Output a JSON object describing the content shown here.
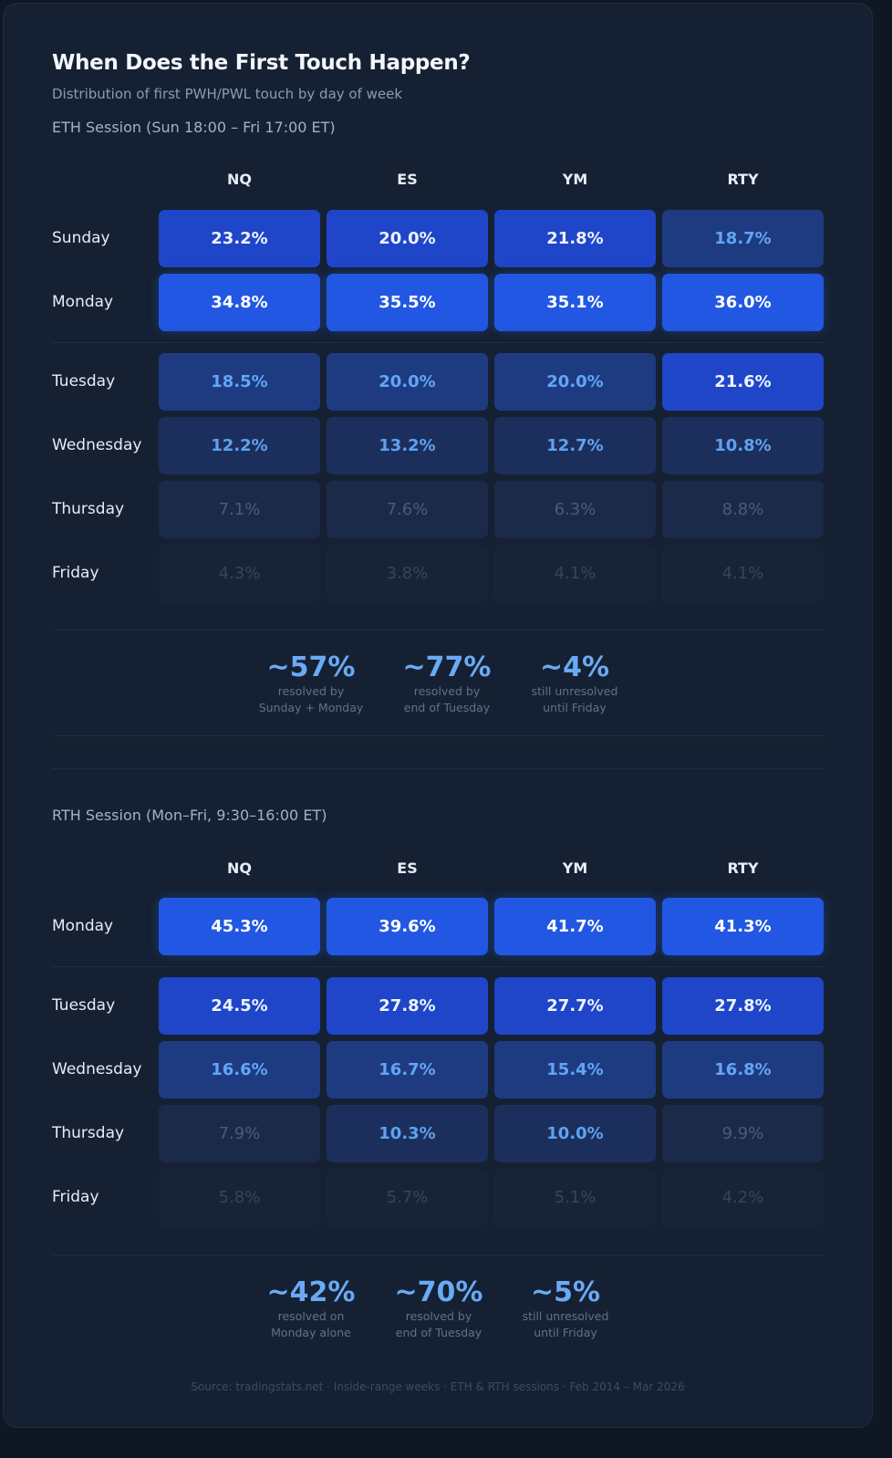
{
  "title": "When Does the First Touch Happen?",
  "subtitle": "Distribution of first PWH/PWL touch by day of week",
  "chart_data": [
    {
      "type": "heatmap",
      "title": "ETH Session (Sun 18:00 – Fri 17:00 ET)",
      "columns": [
        "NQ",
        "ES",
        "YM",
        "RTY"
      ],
      "rows": [
        "Sunday",
        "Monday",
        "Tuesday",
        "Wednesday",
        "Thursday",
        "Friday"
      ],
      "values": [
        [
          "23.2%",
          "20.0%",
          "21.8%",
          "18.7%"
        ],
        [
          "34.8%",
          "35.5%",
          "35.1%",
          "36.0%"
        ],
        [
          "18.5%",
          "20.0%",
          "20.0%",
          "21.6%"
        ],
        [
          "12.2%",
          "13.2%",
          "12.7%",
          "10.8%"
        ],
        [
          "7.1%",
          "7.6%",
          "6.3%",
          "8.8%"
        ],
        [
          "4.3%",
          "3.8%",
          "4.1%",
          "4.1%"
        ]
      ],
      "intensity": [
        [
          4,
          4,
          4,
          3
        ],
        [
          5,
          5,
          5,
          5
        ],
        [
          3,
          3,
          3,
          4
        ],
        [
          2,
          2,
          2,
          2
        ],
        [
          1,
          1,
          1,
          1
        ],
        [
          0,
          0,
          0,
          0
        ]
      ],
      "summary": [
        {
          "value": "~57%",
          "line1": "resolved by",
          "line2": "Sunday + Monday"
        },
        {
          "value": "~77%",
          "line1": "resolved by",
          "line2": "end of Tuesday"
        },
        {
          "value": "~4%",
          "line1": "still unresolved",
          "line2": "until Friday"
        }
      ]
    },
    {
      "type": "heatmap",
      "title": "RTH Session (Mon–Fri, 9:30–16:00 ET)",
      "columns": [
        "NQ",
        "ES",
        "YM",
        "RTY"
      ],
      "rows": [
        "Monday",
        "Tuesday",
        "Wednesday",
        "Thursday",
        "Friday"
      ],
      "values": [
        [
          "45.3%",
          "39.6%",
          "41.7%",
          "41.3%"
        ],
        [
          "24.5%",
          "27.8%",
          "27.7%",
          "27.8%"
        ],
        [
          "16.6%",
          "16.7%",
          "15.4%",
          "16.8%"
        ],
        [
          "7.9%",
          "10.3%",
          "10.0%",
          "9.9%"
        ],
        [
          "5.8%",
          "5.7%",
          "5.1%",
          "4.2%"
        ]
      ],
      "intensity": [
        [
          5,
          5,
          5,
          5
        ],
        [
          4,
          4,
          4,
          4
        ],
        [
          3,
          3,
          3,
          3
        ],
        [
          1,
          2,
          2,
          1
        ],
        [
          0,
          0,
          0,
          0
        ]
      ],
      "summary": [
        {
          "value": "~42%",
          "line1": "resolved on",
          "line2": "Monday alone"
        },
        {
          "value": "~70%",
          "line1": "resolved by",
          "line2": "end of Tuesday"
        },
        {
          "value": "~5%",
          "line1": "still unresolved",
          "line2": "until Friday"
        }
      ]
    }
  ],
  "colors": {
    "tiers_bg": [
      "#172438",
      "#1a2a48",
      "#1c2f5c",
      "#1e3b82",
      "#1f45c9",
      "#2157e2"
    ],
    "tiers_text": [
      "#34445d",
      "#4a5c79",
      "#5ea2f2",
      "#62a6f5",
      "#eef3ff",
      "#ffffff"
    ],
    "accent": "#6aaaf5"
  },
  "source": "Source: tradingstats.net · Inside-range weeks · ETH & RTH sessions · Feb 2014 – Mar 2026"
}
